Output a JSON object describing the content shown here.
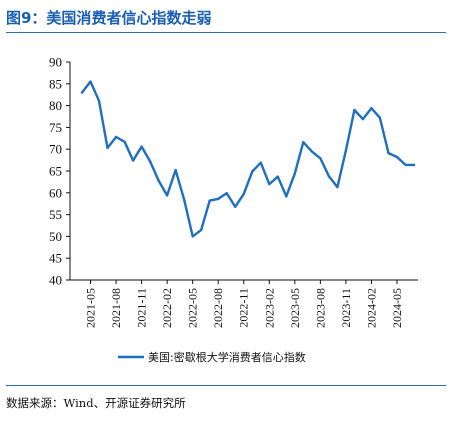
{
  "figure": {
    "title": "图9：美国消费者信心指数走弱",
    "source": "数据来源：Wind、开源证券研究所"
  },
  "colors": {
    "line": "#1f6fc0",
    "title": "#1a5fb4",
    "rule": "#2f6db5",
    "axis": "#111111"
  },
  "chart_data": {
    "type": "line",
    "title": "",
    "xlabel": "",
    "ylabel": "",
    "ylim": [
      40,
      90
    ],
    "yticks": [
      40,
      45,
      50,
      55,
      60,
      65,
      70,
      75,
      80,
      85,
      90
    ],
    "grid": false,
    "legend_position": "bottom-center",
    "x_tick_labels": [
      "2021-05",
      "2021-08",
      "2021-11",
      "2022-02",
      "2022-05",
      "2022-08",
      "2022-11",
      "2023-02",
      "2023-05",
      "2023-08",
      "2023-11",
      "2024-02",
      "2024-05"
    ],
    "x": [
      "2021-04",
      "2021-05",
      "2021-06",
      "2021-07",
      "2021-08",
      "2021-09",
      "2021-10",
      "2021-11",
      "2021-12",
      "2022-01",
      "2022-02",
      "2022-03",
      "2022-04",
      "2022-05",
      "2022-06",
      "2022-07",
      "2022-08",
      "2022-09",
      "2022-10",
      "2022-11",
      "2022-12",
      "2023-01",
      "2023-02",
      "2023-03",
      "2023-04",
      "2023-05",
      "2023-06",
      "2023-07",
      "2023-08",
      "2023-09",
      "2023-10",
      "2023-11",
      "2023-12",
      "2024-01",
      "2024-02",
      "2024-03",
      "2024-04",
      "2024-05",
      "2024-06",
      "2024-07"
    ],
    "series": [
      {
        "name": "美国:密歇根大学消费者信心指数",
        "values": [
          83.0,
          85.5,
          81.1,
          70.3,
          72.8,
          71.7,
          67.4,
          70.6,
          67.2,
          62.8,
          59.4,
          65.2,
          58.4,
          50.0,
          51.5,
          58.2,
          58.6,
          59.9,
          56.8,
          59.7,
          64.9,
          66.9,
          62.0,
          63.7,
          59.2,
          64.4,
          71.6,
          69.5,
          67.9,
          63.8,
          61.3,
          69.7,
          79.0,
          76.9,
          79.4,
          77.2,
          69.1,
          68.2,
          66.4,
          66.4
        ]
      }
    ]
  }
}
